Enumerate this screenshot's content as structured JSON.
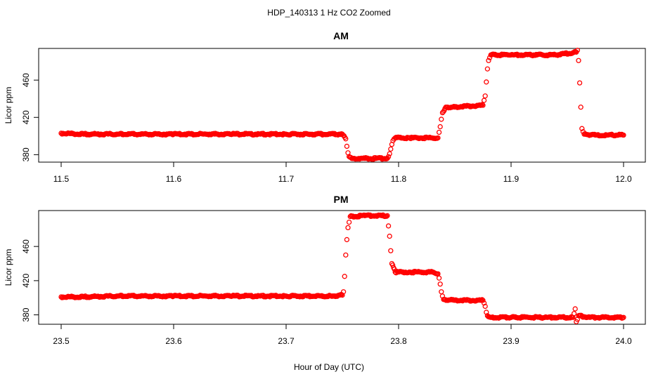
{
  "figure": {
    "suptitle": "HDP_140313  1 Hz CO2 Zoomed",
    "xlabel": "Hour of Day (UTC)"
  },
  "colors": {
    "points": "#ff0000",
    "axes": "#000000"
  },
  "chart_data": [
    {
      "type": "scatter",
      "title": "AM",
      "xlabel": "",
      "ylabel": "Licor ppm",
      "xlim": [
        11.5,
        12.0
      ],
      "ylim": [
        372,
        494
      ],
      "xticks": [
        11.5,
        11.6,
        11.7,
        11.8,
        11.9,
        12.0
      ],
      "xtick_labels": [
        "11.5",
        "11.6",
        "11.7",
        "11.8",
        "11.9",
        "12.0"
      ],
      "yticks": [
        380,
        420,
        460
      ],
      "ytick_labels": [
        "380",
        "420",
        "460"
      ],
      "series": [
        {
          "marker": "open-circle",
          "color": "#ff0000",
          "points": [
            [
              11.5,
              403
            ],
            [
              11.52,
              402
            ],
            [
              11.55,
              402
            ],
            [
              11.6,
              402
            ],
            [
              11.65,
              402
            ],
            [
              11.7,
              402
            ],
            [
              11.72,
              402
            ],
            [
              11.75,
              402
            ],
            [
              11.753,
              397
            ],
            [
              11.754,
              389
            ],
            [
              11.755,
              382
            ],
            [
              11.756,
              378
            ],
            [
              11.76,
              376
            ],
            [
              11.77,
              376
            ],
            [
              11.78,
              376
            ],
            [
              11.79,
              376
            ],
            [
              11.792,
              381
            ],
            [
              11.793,
              386
            ],
            [
              11.794,
              391
            ],
            [
              11.795,
              395
            ],
            [
              11.797,
              398
            ],
            [
              11.81,
              398
            ],
            [
              11.82,
              398
            ],
            [
              11.83,
              398
            ],
            [
              11.835,
              398
            ],
            [
              11.836,
              404
            ],
            [
              11.837,
              410
            ],
            [
              11.838,
              418
            ],
            [
              11.839,
              425
            ],
            [
              11.842,
              431
            ],
            [
              11.85,
              431
            ],
            [
              11.86,
              432
            ],
            [
              11.875,
              433
            ],
            [
              11.877,
              443
            ],
            [
              11.878,
              458
            ],
            [
              11.879,
              472
            ],
            [
              11.88,
              481
            ],
            [
              11.882,
              487
            ],
            [
              11.9,
              487
            ],
            [
              11.92,
              487
            ],
            [
              11.94,
              487
            ],
            [
              11.958,
              490
            ],
            [
              11.959,
              492
            ],
            [
              11.96,
              481
            ],
            [
              11.961,
              457
            ],
            [
              11.962,
              431
            ],
            [
              11.963,
              408
            ],
            [
              11.965,
              402
            ],
            [
              11.975,
              401
            ],
            [
              11.985,
              401
            ],
            [
              12.0,
              401
            ]
          ]
        }
      ]
    },
    {
      "type": "scatter",
      "title": "PM",
      "xlabel": "",
      "ylabel": "Licor ppm",
      "xlim": [
        23.5,
        24.0
      ],
      "ylim": [
        369,
        502
      ],
      "xticks": [
        23.5,
        23.6,
        23.7,
        23.8,
        23.9,
        24.0
      ],
      "xtick_labels": [
        "23.5",
        "23.6",
        "23.7",
        "23.8",
        "23.9",
        "24.0"
      ],
      "yticks": [
        380,
        420,
        460
      ],
      "ytick_labels": [
        "380",
        "420",
        "460"
      ],
      "series": [
        {
          "marker": "open-circle",
          "color": "#ff0000",
          "points": [
            [
              23.5,
              401
            ],
            [
              23.52,
              401
            ],
            [
              23.55,
              402
            ],
            [
              23.6,
              402
            ],
            [
              23.65,
              402
            ],
            [
              23.7,
              402
            ],
            [
              23.74,
              402
            ],
            [
              23.75,
              403
            ],
            [
              23.751,
              407
            ],
            [
              23.752,
              425
            ],
            [
              23.753,
              450
            ],
            [
              23.754,
              468
            ],
            [
              23.755,
              482
            ],
            [
              23.757,
              495
            ],
            [
              23.77,
              496
            ],
            [
              23.78,
              496
            ],
            [
              23.79,
              496
            ],
            [
              23.791,
              484
            ],
            [
              23.792,
              472
            ],
            [
              23.793,
              455
            ],
            [
              23.794,
              440
            ],
            [
              23.797,
              430
            ],
            [
              23.81,
              430
            ],
            [
              23.82,
              430
            ],
            [
              23.83,
              430
            ],
            [
              23.835,
              428
            ],
            [
              23.836,
              423
            ],
            [
              23.837,
              416
            ],
            [
              23.838,
              407
            ],
            [
              23.84,
              398
            ],
            [
              23.85,
              397
            ],
            [
              23.86,
              397
            ],
            [
              23.875,
              397
            ],
            [
              23.877,
              390
            ],
            [
              23.878,
              383
            ],
            [
              23.879,
              379
            ],
            [
              23.882,
              377
            ],
            [
              23.9,
              377
            ],
            [
              23.93,
              377
            ],
            [
              23.955,
              377
            ],
            [
              23.957,
              387
            ],
            [
              23.958,
              372
            ],
            [
              23.96,
              379
            ],
            [
              23.97,
              377
            ],
            [
              23.98,
              377
            ],
            [
              24.0,
              377
            ]
          ]
        }
      ]
    }
  ]
}
